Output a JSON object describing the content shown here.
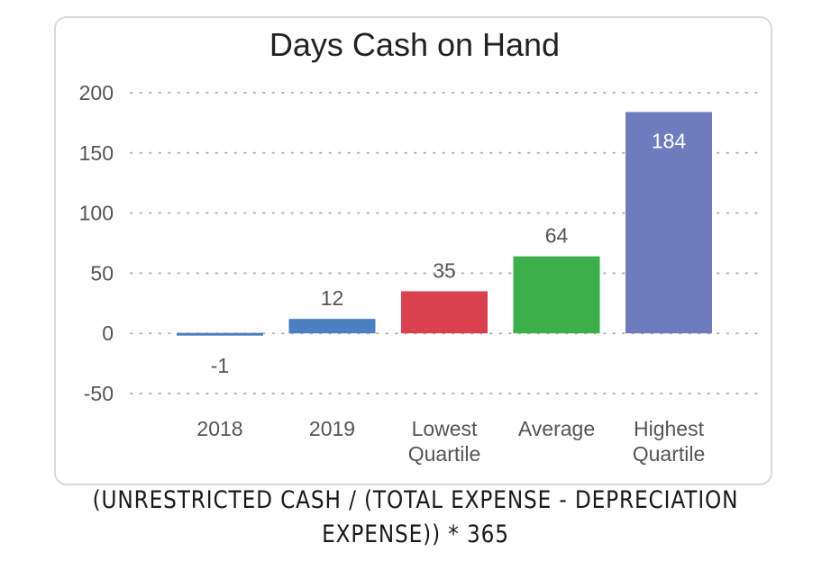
{
  "chart_data": {
    "type": "bar",
    "title": "Days Cash on Hand",
    "categories": [
      [
        "2018"
      ],
      [
        "2019"
      ],
      [
        "Lowest",
        "Quartile"
      ],
      [
        "Average"
      ],
      [
        "Highest",
        "Quartile"
      ]
    ],
    "values": [
      -1,
      12,
      35,
      64,
      184
    ],
    "value_labels": [
      "-1",
      "12",
      "35",
      "64",
      "184"
    ],
    "colors": [
      "#4a7fc1",
      "#4a7fc1",
      "#d9414e",
      "#3bb04a",
      "#6e7bbd"
    ],
    "ylim": [
      -50,
      200
    ],
    "yticks": [
      200,
      150,
      100,
      50,
      0,
      -50
    ],
    "grid": true,
    "xlabel": "",
    "ylabel": ""
  },
  "formula": {
    "line1": "(UNRESTRICTED CASH / (TOTAL EXPENSE - DEPRECIATION",
    "line2": "EXPENSE)) * 365"
  }
}
